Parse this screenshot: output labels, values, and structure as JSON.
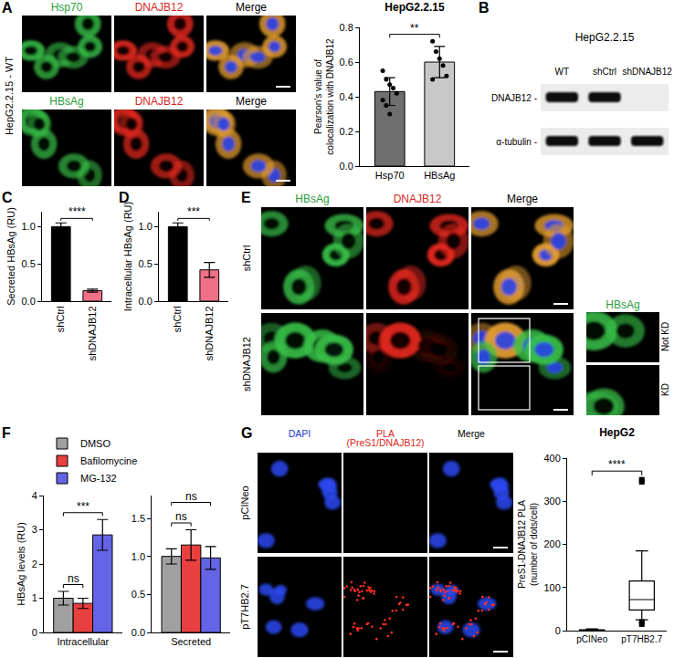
{
  "figure": {
    "A": {
      "letter": "A",
      "side_label": "HepG2.2.15 - WT",
      "rows": [
        {
          "headers": [
            {
              "text": "Hsp70",
              "color": "#2a9d38"
            },
            {
              "text": "DNAJB12",
              "color": "#d8261c"
            },
            {
              "text": "Merge",
              "color": "#000000"
            }
          ]
        },
        {
          "headers": [
            {
              "text": "HBsAg",
              "color": "#2a9d38"
            },
            {
              "text": "DNAJB12",
              "color": "#d8261c"
            },
            {
              "text": "Merge",
              "color": "#000000"
            }
          ]
        }
      ]
    },
    "B": {
      "letter": "B",
      "title": "HepG2.2.15",
      "lanes": [
        "WT",
        "shCtrl",
        "shDNAJB12"
      ],
      "rows": [
        {
          "label": "DNAJB12 -",
          "bands": [
            true,
            true,
            false
          ]
        },
        {
          "label": "α-tubulin -",
          "bands": [
            true,
            true,
            true
          ]
        }
      ]
    },
    "E": {
      "letter": "E",
      "headers": [
        {
          "text": "HBsAg",
          "color": "#2a9d38"
        },
        {
          "text": "DNAJB12",
          "color": "#d8261c"
        },
        {
          "text": "Merge",
          "color": "#000000"
        }
      ],
      "rows": [
        "shCtrl",
        "shDNAJB12"
      ],
      "inset": {
        "header": {
          "text": "HBsAg",
          "color": "#2a9d38"
        },
        "labels": [
          "Not KD",
          "KD"
        ]
      }
    },
    "G": {
      "letter": "G",
      "headers": [
        {
          "text": "DAPI",
          "color": "#2040d0"
        },
        {
          "text": "PLA (PreS1/DNAJB12)",
          "color": "#d8261c"
        },
        {
          "text": "Merge",
          "color": "#000000"
        }
      ],
      "rows": [
        "pCINeo",
        "pT7HB2.7"
      ]
    }
  },
  "chart_data": [
    {
      "type": "bar",
      "title": "HepG2.2.15",
      "y_label": "Pearson's value of colocalization with DNAJB12",
      "categories": [
        "Hsp70",
        "HBsAg"
      ],
      "values": [
        0.43,
        0.6
      ],
      "errors": [
        0.08,
        0.09
      ],
      "points": [
        [
          0.55,
          0.5,
          0.47,
          0.45,
          0.42,
          0.38,
          0.35,
          0.3
        ],
        [
          0.72,
          0.66,
          0.62,
          0.58,
          0.52,
          0.5
        ]
      ],
      "colors": [
        "#6e6e6e",
        "#c8c8c8"
      ],
      "ylim": [
        0,
        0.8
      ],
      "yticks": [
        {
          "value": 0,
          "label": "0.0"
        },
        0.2,
        0.4,
        0.6,
        0.8
      ],
      "comparisons": [
        {
          "between": [
            0,
            1
          ],
          "text": "**"
        }
      ]
    },
    {
      "type": "bar",
      "letter": "C",
      "y_label": "Secreted HBsAg (RU)",
      "categories": [
        "shCtrl",
        "shDNAJB12"
      ],
      "values": [
        1.0,
        0.14
      ],
      "errors": [
        0.05,
        0.02
      ],
      "colors": [
        "#000000",
        "#f07088"
      ],
      "ylim": [
        0,
        1.2
      ],
      "yticks": [
        {
          "value": 0,
          "label": "0.0"
        },
        0.5,
        {
          "value": 1,
          "label": "1.0"
        }
      ],
      "comparisons": [
        {
          "between": [
            0,
            1
          ],
          "text": "****"
        }
      ]
    },
    {
      "type": "bar",
      "letter": "D",
      "y_label": "Intracellular HBsAg (RU)",
      "categories": [
        "shCtrl",
        "shDNAJB12"
      ],
      "values": [
        1.0,
        0.42
      ],
      "errors": [
        0.05,
        0.1
      ],
      "colors": [
        "#000000",
        "#f07088"
      ],
      "ylim": [
        0,
        1.2
      ],
      "yticks": [
        {
          "value": 0,
          "label": "0.0"
        },
        0.5,
        {
          "value": 1,
          "label": "1.0"
        }
      ],
      "comparisons": [
        {
          "between": [
            0,
            1
          ],
          "text": "***"
        }
      ]
    },
    {
      "type": "bar",
      "letter": "F",
      "y_label": "HBsAg levels (RU)",
      "legend": "top-left",
      "categories": [
        "Intracellular",
        "Secreted"
      ],
      "series": [
        {
          "name": "DMSO",
          "color": "#a0a0a0",
          "values": [
            1.0,
            1.0
          ],
          "errors": [
            0.2,
            0.1
          ]
        },
        {
          "name": "Bafilomycine",
          "color": "#e8403f",
          "values": [
            0.85,
            1.15
          ],
          "errors": [
            0.15,
            0.2
          ]
        },
        {
          "name": "MG-132",
          "color": "#6464e6",
          "values": [
            2.85,
            0.98
          ],
          "errors": [
            0.45,
            0.15
          ]
        }
      ],
      "subplots": [
        {
          "ylim": [
            0,
            4
          ],
          "yticks": [
            0,
            1,
            2,
            3,
            4
          ],
          "comparisons": [
            {
              "between": [
                0,
                1
              ],
              "text": "ns"
            },
            {
              "between": [
                0,
                2
              ],
              "text": "***"
            }
          ]
        },
        {
          "ylim": [
            0,
            1.8
          ],
          "yticks": [
            {
              "value": 0,
              "label": "0.0"
            },
            0.5,
            {
              "value": 1,
              "label": "1.0"
            },
            1.5
          ],
          "comparisons": [
            {
              "between": [
                0,
                1
              ],
              "text": "ns"
            },
            {
              "between": [
                0,
                2
              ],
              "text": "ns"
            }
          ]
        }
      ]
    },
    {
      "type": "box",
      "title": "HepG2",
      "y_label": "PreS1-DNAJB12 PLA (number of dots/cell)",
      "categories": [
        "pCINeo",
        "pT7HB2.7"
      ],
      "boxes": [
        {
          "lower": 0,
          "q1": 0,
          "median": 1,
          "q3": 2,
          "upper": 4,
          "outliers": []
        },
        {
          "lower": 25,
          "q1": 48,
          "median": 72,
          "q3": 115,
          "upper": 185,
          "outliers": [
            350,
            345,
            20,
            15
          ]
        }
      ],
      "ylim": [
        0,
        400
      ],
      "yticks": [
        0,
        100,
        200,
        300,
        400
      ],
      "comparisons": [
        {
          "between": [
            0,
            1
          ],
          "text": "****"
        }
      ]
    }
  ]
}
